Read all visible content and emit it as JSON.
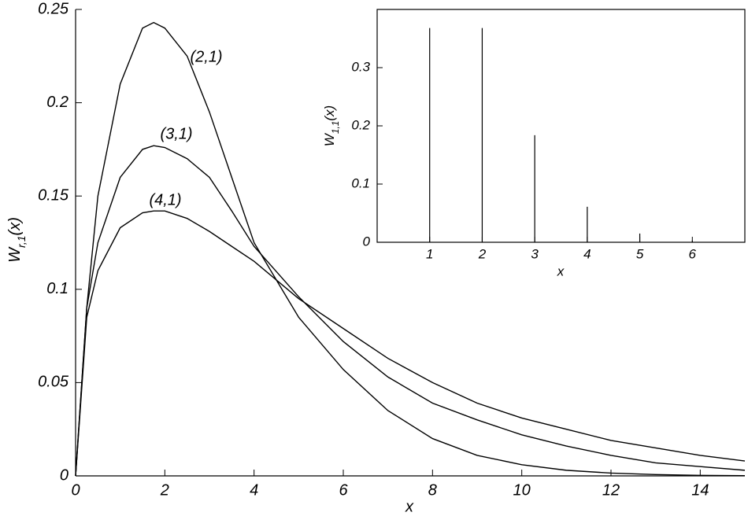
{
  "chart_data": [
    {
      "type": "line",
      "xlabel": "x",
      "ylabel": [
        "W",
        "r,1",
        "(x)"
      ],
      "xlim": [
        0,
        15
      ],
      "ylim": [
        0,
        0.25
      ],
      "xticks": [
        0,
        2,
        4,
        6,
        8,
        10,
        12,
        14
      ],
      "yticks": [
        0,
        0.05,
        0.1,
        0.15,
        0.2,
        0.25
      ],
      "x": [
        0,
        0.25,
        0.5,
        1,
        1.5,
        1.75,
        2,
        2.5,
        3,
        3.5,
        4,
        5,
        6,
        7,
        8,
        9,
        10,
        11,
        12,
        13,
        14,
        15
      ],
      "series": [
        {
          "name": "(2,1)",
          "color": "#000000",
          "values": [
            0,
            0.09,
            0.15,
            0.21,
            0.24,
            0.243,
            0.24,
            0.225,
            0.195,
            0.16,
            0.125,
            0.085,
            0.057,
            0.035,
            0.02,
            0.011,
            0.006,
            0.003,
            0.0015,
            0.0007,
            0.0003,
            0.0001
          ]
        },
        {
          "name": "(3,1)",
          "color": "#000000",
          "values": [
            0,
            0.09,
            0.125,
            0.16,
            0.175,
            0.177,
            0.176,
            0.17,
            0.16,
            0.142,
            0.123,
            0.096,
            0.072,
            0.053,
            0.039,
            0.03,
            0.022,
            0.016,
            0.011,
            0.007,
            0.005,
            0.003
          ]
        },
        {
          "name": "(4,1)",
          "color": "#000000",
          "values": [
            0,
            0.085,
            0.11,
            0.133,
            0.141,
            0.142,
            0.142,
            0.138,
            0.131,
            0.123,
            0.115,
            0.095,
            0.079,
            0.063,
            0.05,
            0.039,
            0.031,
            0.025,
            0.019,
            0.015,
            0.011,
            0.008
          ]
        }
      ]
    },
    {
      "type": "bar",
      "xlabel": "x",
      "ylabel": [
        "W",
        "1,1",
        "(x)"
      ],
      "xlim": [
        0,
        7
      ],
      "ylim": [
        0,
        0.4
      ],
      "xticks": [
        1,
        2,
        3,
        4,
        5,
        6
      ],
      "yticks": [
        0,
        0.1,
        0.2,
        0.3
      ],
      "x": [
        1,
        2,
        3,
        4,
        5,
        6
      ],
      "color": "#000000",
      "values": [
        0.368,
        0.368,
        0.184,
        0.061,
        0.015,
        0.003
      ]
    }
  ]
}
